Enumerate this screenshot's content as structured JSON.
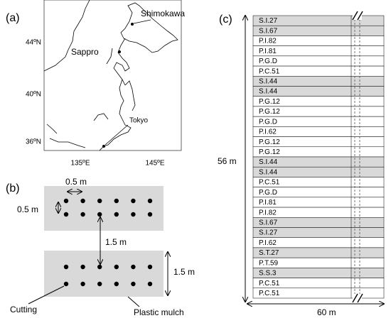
{
  "panel_a": {
    "label": "(a)",
    "places": [
      "Shimokawa",
      "Sappro",
      "Tokyo"
    ],
    "lat_labels": [
      "44ºN",
      "40ºN",
      "36ºN"
    ],
    "lon_labels": [
      "135ºE",
      "145ºE"
    ]
  },
  "panel_b": {
    "label": "(b)",
    "spacing_labels": [
      "0.5 m",
      "0.5 m",
      "1.5 m",
      "1.5 m"
    ],
    "callouts": [
      "Cutting",
      "Plastic mulch"
    ]
  },
  "panel_c": {
    "label": "(c)",
    "length_label": "56 m",
    "width_label": "60 m",
    "rows": [
      "S.I.27",
      "S.I.67",
      "P.I.82",
      "P.I.81",
      "P.G.D",
      "P.C.51",
      "S.I.44",
      "S.I.44",
      "P.G.12",
      "P.G.12",
      "P.G.D",
      "P.I.62",
      "P.G.12",
      "P.G.12",
      "S.I.44",
      "S.I.44",
      "P.C.51",
      "P.G.D",
      "P.I.81",
      "P.I.82",
      "S.I.67",
      "S.I.27",
      "P.I.62",
      "S.T.27",
      "P.T.59",
      "S.S.3",
      "P.C.51",
      "P.C.51"
    ]
  }
}
